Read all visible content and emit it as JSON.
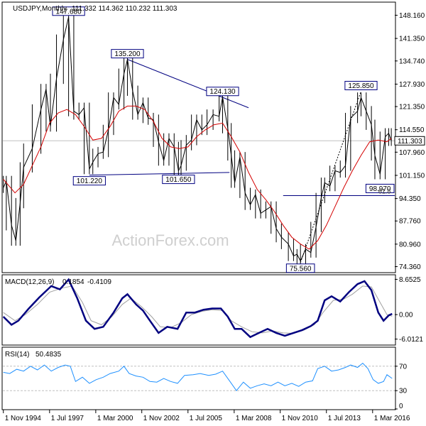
{
  "chart_data": {
    "type": "line",
    "title": "USDJPY,Monthly",
    "ohlc_readout": "111.332 114.362 110.232 111.303",
    "watermark": "ActionForex.com",
    "x_tick_labels": [
      "1 Nov 1994",
      "1 Jul 1997",
      "1 Mar 2000",
      "1 Nov 2002",
      "1 Jul 2005",
      "1 Mar 2008",
      "1 Nov 2010",
      "1 Jul 2013",
      "1 Mar 2016"
    ],
    "x_ticks": [
      1994.83,
      1997.5,
      2000.17,
      2002.83,
      2005.5,
      2008.17,
      2010.83,
      2013.5,
      2016.17
    ],
    "x_range": [
      1994.8,
      2017.45
    ],
    "price_panel": {
      "y_range": [
        72.8,
        151.8
      ],
      "y_ticks": [
        "148.160",
        "141.350",
        "134.740",
        "127.930",
        "121.350",
        "114.550",
        "107.960",
        "101.150",
        "94.350",
        "87.760",
        "80.960",
        "74.360"
      ],
      "current_price": "111.303",
      "series_color": "#000000",
      "ma_color": "#d40000",
      "price_line": [
        [
          1994.83,
          97.5
        ],
        [
          1995.0,
          99.5
        ],
        [
          1995.3,
          86.5
        ],
        [
          1995.55,
          82.0
        ],
        [
          1995.8,
          93.0
        ],
        [
          1996.0,
          103.5
        ],
        [
          1996.5,
          109.0
        ],
        [
          1997.0,
          120.5
        ],
        [
          1997.3,
          126.5
        ],
        [
          1997.55,
          115.5
        ],
        [
          1997.9,
          129.5
        ],
        [
          1998.3,
          141.0
        ],
        [
          1998.6,
          147.68
        ],
        [
          1998.9,
          120.0
        ],
        [
          1999.2,
          119.0
        ],
        [
          1999.5,
          121.0
        ],
        [
          1999.8,
          103.0
        ],
        [
          2000.0,
          105.0
        ],
        [
          2000.3,
          107.5
        ],
        [
          2000.6,
          108.0
        ],
        [
          2000.9,
          114.5
        ],
        [
          2001.2,
          124.0
        ],
        [
          2001.5,
          122.0
        ],
        [
          2001.8,
          131.0
        ],
        [
          2002.0,
          135.2
        ],
        [
          2002.3,
          126.0
        ],
        [
          2002.6,
          119.0
        ],
        [
          2002.9,
          122.5
        ],
        [
          2003.2,
          118.0
        ],
        [
          2003.5,
          117.5
        ],
        [
          2003.8,
          111.0
        ],
        [
          2004.1,
          105.5
        ],
        [
          2004.4,
          112.0
        ],
        [
          2004.7,
          109.5
        ],
        [
          2004.95,
          102.5
        ],
        [
          2005.1,
          104.0
        ],
        [
          2005.4,
          110.0
        ],
        [
          2005.7,
          111.5
        ],
        [
          2006.0,
          117.5
        ],
        [
          2006.3,
          114.5
        ],
        [
          2006.6,
          116.0
        ],
        [
          2006.95,
          119.0
        ],
        [
          2007.3,
          118.5
        ],
        [
          2007.5,
          124.13
        ],
        [
          2007.8,
          115.0
        ],
        [
          2008.0,
          107.0
        ],
        [
          2008.2,
          99.0
        ],
        [
          2008.5,
          106.5
        ],
        [
          2008.8,
          96.0
        ],
        [
          2009.1,
          92.5
        ],
        [
          2009.4,
          95.5
        ],
        [
          2009.7,
          90.0
        ],
        [
          2010.0,
          91.0
        ],
        [
          2010.3,
          92.0
        ],
        [
          2010.6,
          85.5
        ],
        [
          2010.9,
          83.0
        ],
        [
          2011.3,
          81.0
        ],
        [
          2011.6,
          77.5
        ],
        [
          2011.8,
          78.0
        ],
        [
          2012.0,
          76.0
        ],
        [
          2012.3,
          79.5
        ],
        [
          2012.6,
          78.5
        ],
        [
          2012.9,
          86.0
        ],
        [
          2013.2,
          94.5
        ],
        [
          2013.4,
          99.0
        ],
        [
          2013.7,
          98.0
        ],
        [
          2014.0,
          102.5
        ],
        [
          2014.3,
          102.0
        ],
        [
          2014.6,
          104.0
        ],
        [
          2014.9,
          118.0
        ],
        [
          2015.3,
          120.0
        ],
        [
          2015.5,
          124.0
        ],
        [
          2015.8,
          120.0
        ],
        [
          2016.1,
          116.0
        ],
        [
          2016.3,
          107.0
        ],
        [
          2016.6,
          101.5
        ],
        [
          2016.9,
          112.5
        ],
        [
          2017.1,
          113.5
        ],
        [
          2017.25,
          111.3
        ]
      ],
      "ma_line": [
        [
          1994.83,
          100.0
        ],
        [
          1995.5,
          96.0
        ],
        [
          1996.0,
          98.5
        ],
        [
          1996.5,
          104.0
        ],
        [
          1997.0,
          109.5
        ],
        [
          1997.5,
          116.5
        ],
        [
          1998.0,
          119.5
        ],
        [
          1998.5,
          120.5
        ],
        [
          1999.0,
          119.0
        ],
        [
          1999.5,
          115.5
        ],
        [
          2000.0,
          111.5
        ],
        [
          2000.5,
          112.0
        ],
        [
          2001.0,
          115.5
        ],
        [
          2001.5,
          120.0
        ],
        [
          2002.0,
          121.5
        ],
        [
          2002.5,
          121.5
        ],
        [
          2003.0,
          120.5
        ],
        [
          2003.5,
          117.0
        ],
        [
          2004.0,
          112.0
        ],
        [
          2004.5,
          109.5
        ],
        [
          2005.0,
          109.0
        ],
        [
          2005.5,
          109.5
        ],
        [
          2006.0,
          112.5
        ],
        [
          2006.5,
          114.5
        ],
        [
          2007.0,
          116.0
        ],
        [
          2007.5,
          116.5
        ],
        [
          2008.0,
          112.5
        ],
        [
          2008.5,
          108.0
        ],
        [
          2009.0,
          102.0
        ],
        [
          2009.5,
          97.0
        ],
        [
          2010.0,
          94.0
        ],
        [
          2010.5,
          90.5
        ],
        [
          2011.0,
          86.5
        ],
        [
          2011.5,
          83.0
        ],
        [
          2012.0,
          81.0
        ],
        [
          2012.5,
          79.5
        ],
        [
          2013.0,
          82.0
        ],
        [
          2013.5,
          86.5
        ],
        [
          2014.0,
          92.0
        ],
        [
          2014.5,
          97.5
        ],
        [
          2015.0,
          102.5
        ],
        [
          2015.5,
          107.0
        ],
        [
          2016.0,
          111.0
        ],
        [
          2016.5,
          111.5
        ],
        [
          2017.0,
          111.0
        ],
        [
          2017.25,
          112.0
        ]
      ],
      "annotations": [
        {
          "label": "147.680",
          "x": 1998.6,
          "y": 147.68
        },
        {
          "label": "135.200",
          "x": 2002.0,
          "y": 135.2
        },
        {
          "label": "124.130",
          "x": 2007.5,
          "y": 124.13
        },
        {
          "label": "125.850",
          "x": 2015.5,
          "y": 125.85
        },
        {
          "label": "101.220",
          "x": 1999.8,
          "y": 101.22
        },
        {
          "label": "101.650",
          "x": 2004.95,
          "y": 101.65
        },
        {
          "label": "98.970",
          "x": 2016.6,
          "y": 98.97
        },
        {
          "label": "75.560",
          "x": 2012.0,
          "y": 75.56
        },
        {
          "label": "61.8",
          "x": 2017.3,
          "y": 95.2
        }
      ],
      "trendlines": [
        {
          "from": [
            2002.0,
            135.2
          ],
          "to": [
            2009.0,
            121.0
          ],
          "color": "#000080",
          "style": "solid"
        },
        {
          "from": [
            1999.8,
            101.22
          ],
          "to": [
            2007.9,
            102.0
          ],
          "color": "#000080",
          "style": "solid"
        },
        {
          "from": [
            2012.0,
            75.56
          ],
          "to": [
            2015.5,
            125.85
          ],
          "color": "#000000",
          "style": "dotted"
        },
        {
          "from": [
            2011.0,
            95.2
          ],
          "to": [
            2017.45,
            95.2
          ],
          "color": "#000080",
          "style": "solid"
        }
      ]
    },
    "macd_panel": {
      "label": "MACD(12,26,9)",
      "main_value": "0.1854",
      "signal_value": "-0.4109",
      "y_range": [
        -7.3,
        9.6
      ],
      "y_ticks": [
        "8.6525",
        "0.00",
        "-6.0121"
      ],
      "macd_color": "#000080",
      "signal_color": "#a0a0a0",
      "macd_line": [
        [
          1994.83,
          -0.5
        ],
        [
          1995.3,
          -2.5
        ],
        [
          1995.7,
          -1.5
        ],
        [
          1996.3,
          1.5
        ],
        [
          1996.9,
          4.2
        ],
        [
          1997.6,
          7.0
        ],
        [
          1998.1,
          6.2
        ],
        [
          1998.6,
          8.6
        ],
        [
          1999.1,
          4.0
        ],
        [
          1999.6,
          -1.5
        ],
        [
          2000.1,
          -3.5
        ],
        [
          2000.6,
          -3.0
        ],
        [
          2001.2,
          0.5
        ],
        [
          2001.7,
          4.0
        ],
        [
          2002.0,
          5.0
        ],
        [
          2002.5,
          2.5
        ],
        [
          2002.9,
          1.0
        ],
        [
          2003.3,
          -1.5
        ],
        [
          2003.8,
          -4.5
        ],
        [
          2004.3,
          -3.0
        ],
        [
          2004.9,
          -3.5
        ],
        [
          2005.4,
          0.5
        ],
        [
          2005.9,
          0.5
        ],
        [
          2006.4,
          1.2
        ],
        [
          2006.9,
          1.5
        ],
        [
          2007.4,
          1.5
        ],
        [
          2007.8,
          -0.5
        ],
        [
          2008.2,
          -3.5
        ],
        [
          2008.6,
          -3.5
        ],
        [
          2009.1,
          -5.5
        ],
        [
          2009.6,
          -4.5
        ],
        [
          2010.1,
          -3.5
        ],
        [
          2010.6,
          -4.5
        ],
        [
          2011.1,
          -5.2
        ],
        [
          2011.6,
          -4.5
        ],
        [
          2012.1,
          -3.8
        ],
        [
          2012.6,
          -2.8
        ],
        [
          2013.0,
          -1.5
        ],
        [
          2013.4,
          3.5
        ],
        [
          2013.8,
          4.5
        ],
        [
          2014.3,
          3.2
        ],
        [
          2014.8,
          5.5
        ],
        [
          2015.3,
          7.5
        ],
        [
          2015.7,
          8.2
        ],
        [
          2016.1,
          6.0
        ],
        [
          2016.5,
          0.5
        ],
        [
          2016.8,
          -1.5
        ],
        [
          2017.1,
          -0.2
        ],
        [
          2017.3,
          0.2
        ]
      ],
      "signal_line": [
        [
          1994.83,
          0.5
        ],
        [
          1995.5,
          -1.5
        ],
        [
          1996.1,
          0.0
        ],
        [
          1996.8,
          2.5
        ],
        [
          1997.5,
          5.5
        ],
        [
          1998.2,
          6.5
        ],
        [
          1998.8,
          7.0
        ],
        [
          1999.4,
          3.0
        ],
        [
          1999.9,
          -1.5
        ],
        [
          2000.5,
          -2.5
        ],
        [
          2001.1,
          -0.5
        ],
        [
          2001.7,
          2.5
        ],
        [
          2002.2,
          4.0
        ],
        [
          2002.8,
          2.0
        ],
        [
          2003.4,
          -0.5
        ],
        [
          2003.9,
          -3.0
        ],
        [
          2004.5,
          -3.2
        ],
        [
          2005.1,
          -2.0
        ],
        [
          2005.7,
          0.0
        ],
        [
          2006.3,
          0.8
        ],
        [
          2006.9,
          1.2
        ],
        [
          2007.5,
          1.0
        ],
        [
          2008.0,
          -1.5
        ],
        [
          2008.6,
          -3.0
        ],
        [
          2009.2,
          -4.2
        ],
        [
          2009.8,
          -4.5
        ],
        [
          2010.4,
          -4.0
        ],
        [
          2011.0,
          -4.5
        ],
        [
          2011.6,
          -4.6
        ],
        [
          2012.2,
          -3.8
        ],
        [
          2012.8,
          -2.5
        ],
        [
          2013.3,
          0.5
        ],
        [
          2013.9,
          3.5
        ],
        [
          2014.5,
          3.8
        ],
        [
          2015.0,
          5.0
        ],
        [
          2015.6,
          7.0
        ],
        [
          2016.1,
          6.8
        ],
        [
          2016.6,
          3.0
        ],
        [
          2017.0,
          0.0
        ],
        [
          2017.3,
          -0.4
        ]
      ]
    },
    "rsi_panel": {
      "label": "RSI(14)",
      "value": "50.4835",
      "y_range": [
        0,
        100
      ],
      "y_ticks": [
        "70",
        "30",
        "0"
      ],
      "y_tick_values": [
        70,
        30,
        0
      ],
      "levels": [
        70,
        30
      ],
      "rsi_color": "#1e90ff",
      "rsi_line": [
        [
          1994.83,
          60
        ],
        [
          1995.2,
          58
        ],
        [
          1995.6,
          65
        ],
        [
          1996.0,
          62
        ],
        [
          1996.4,
          70
        ],
        [
          1996.8,
          64
        ],
        [
          1997.2,
          72
        ],
        [
          1997.6,
          62
        ],
        [
          1998.0,
          68
        ],
        [
          1998.4,
          72
        ],
        [
          1998.7,
          70
        ],
        [
          1999.0,
          45
        ],
        [
          1999.4,
          52
        ],
        [
          1999.8,
          42
        ],
        [
          2000.2,
          48
        ],
        [
          2000.6,
          52
        ],
        [
          2001.0,
          58
        ],
        [
          2001.5,
          62
        ],
        [
          2001.8,
          70
        ],
        [
          2002.1,
          58
        ],
        [
          2002.5,
          54
        ],
        [
          2002.9,
          52
        ],
        [
          2003.3,
          45
        ],
        [
          2003.7,
          44
        ],
        [
          2004.1,
          50
        ],
        [
          2004.5,
          45
        ],
        [
          2004.9,
          42
        ],
        [
          2005.3,
          55
        ],
        [
          2005.8,
          56
        ],
        [
          2006.2,
          58
        ],
        [
          2006.7,
          55
        ],
        [
          2007.1,
          57
        ],
        [
          2007.5,
          62
        ],
        [
          2007.9,
          46
        ],
        [
          2008.3,
          30
        ],
        [
          2008.7,
          44
        ],
        [
          2009.1,
          34
        ],
        [
          2009.5,
          38
        ],
        [
          2009.9,
          41
        ],
        [
          2010.3,
          38
        ],
        [
          2010.7,
          44
        ],
        [
          2011.1,
          38
        ],
        [
          2011.5,
          42
        ],
        [
          2011.9,
          37
        ],
        [
          2012.3,
          44
        ],
        [
          2012.7,
          46
        ],
        [
          2013.0,
          66
        ],
        [
          2013.4,
          70
        ],
        [
          2013.8,
          62
        ],
        [
          2014.2,
          64
        ],
        [
          2014.6,
          68
        ],
        [
          2014.9,
          72
        ],
        [
          2015.3,
          68
        ],
        [
          2015.6,
          75
        ],
        [
          2015.9,
          66
        ],
        [
          2016.2,
          48
        ],
        [
          2016.5,
          42
        ],
        [
          2016.8,
          45
        ],
        [
          2017.0,
          56
        ],
        [
          2017.3,
          50
        ]
      ]
    }
  }
}
